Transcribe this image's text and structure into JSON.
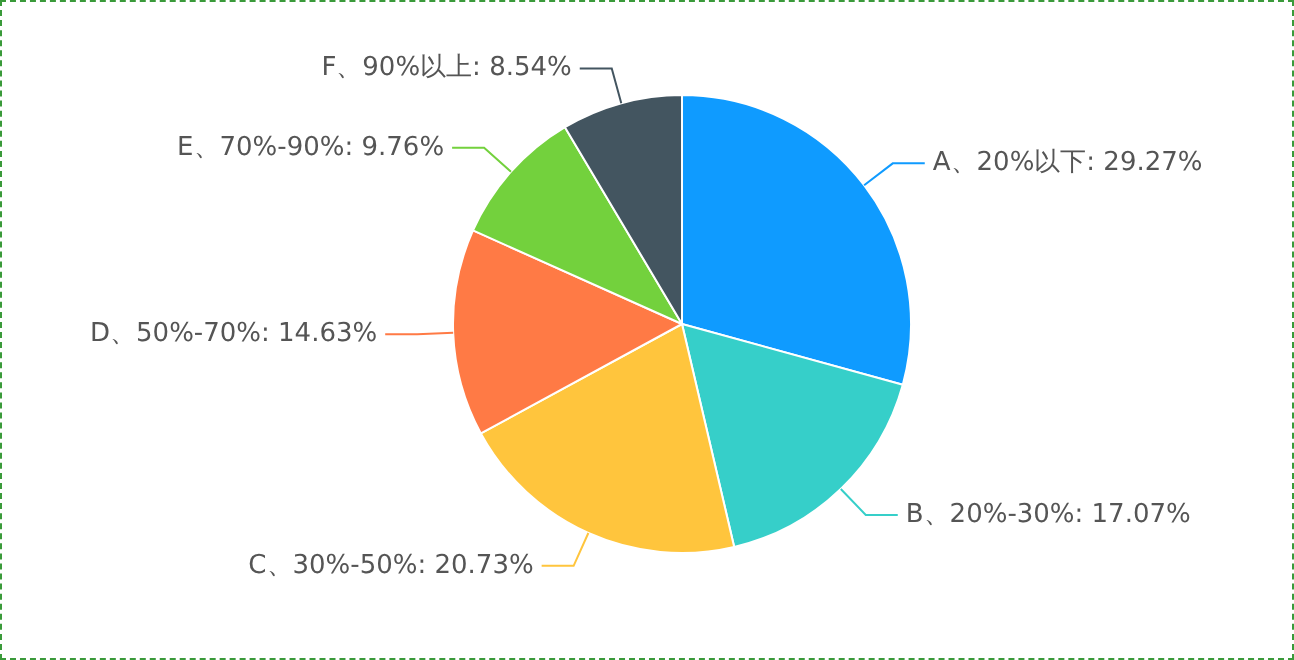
{
  "chart_data": {
    "type": "pie",
    "categories": [
      "A、20%以下",
      "B、20%-30%",
      "C、30%-50%",
      "D、50%-70%",
      "E、70%-90%",
      "F、90%以上"
    ],
    "values": [
      29.27,
      17.07,
      20.73,
      14.63,
      9.76,
      8.54
    ],
    "value_labels": [
      "29.27%",
      "17.07%",
      "20.73%",
      "14.63%",
      "9.76%",
      "8.54%"
    ],
    "colors": [
      "#0f9bff",
      "#36cfc9",
      "#ffc53d",
      "#ff7a45",
      "#73d13d",
      "#435560"
    ],
    "legend": false
  }
}
